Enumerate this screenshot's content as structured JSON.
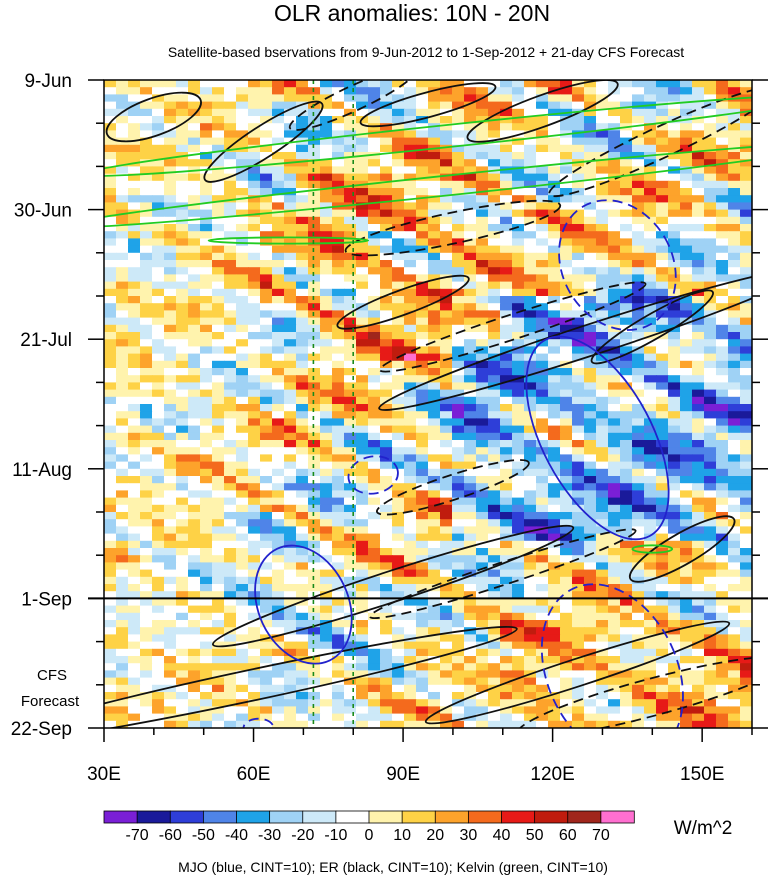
{
  "chart_data": {
    "type": "heatmap",
    "title": "OLR anomalies: 10N - 20N",
    "subtitle": "Satellite-based bservations from 9-Jun-2012 to 1-Sep-2012 + 21-day CFS Forecast",
    "x_ticks": [
      {
        "label": "30E",
        "lon": 30
      },
      {
        "label": "60E",
        "lon": 60
      },
      {
        "label": "90E",
        "lon": 90
      },
      {
        "label": "120E",
        "lon": 120
      },
      {
        "label": "150E",
        "lon": 150
      }
    ],
    "xlim": [
      30,
      160
    ],
    "y_ticks": [
      {
        "label": "9-Jun",
        "day": 0
      },
      {
        "label": "30-Jun",
        "day": 21
      },
      {
        "label": "21-Jul",
        "day": 42
      },
      {
        "label": "11-Aug",
        "day": 63
      },
      {
        "label": "1-Sep",
        "day": 84
      },
      {
        "label": "22-Sep",
        "day": 105
      }
    ],
    "ylim_days": [
      0,
      105
    ],
    "forecast_label_1": "CFS",
    "forecast_label_2": "Forecast",
    "forecast_start_day": 84,
    "vertical_reference_lons": [
      72,
      80
    ],
    "colorbar": {
      "levels": [
        "-70",
        "-60",
        "-50",
        "-40",
        "-30",
        "-20",
        "-10",
        "0",
        "10",
        "20",
        "30",
        "40",
        "50",
        "60",
        "70"
      ],
      "colors": [
        "#7a1fd6",
        "#1a1a9a",
        "#2e3ed8",
        "#4f84e8",
        "#1fa3e8",
        "#9fd2f5",
        "#cde9f8",
        "#ffffff",
        "#fff3ad",
        "#fed246",
        "#fda32b",
        "#f46a1d",
        "#e71a17",
        "#c01c0e",
        "#a0261c",
        "#ff6fd0"
      ],
      "unit": "W/m^2"
    },
    "footer": "MJO (blue, CINT=10); ER (black, CINT=10); Kelvin (green, CINT=10)"
  }
}
